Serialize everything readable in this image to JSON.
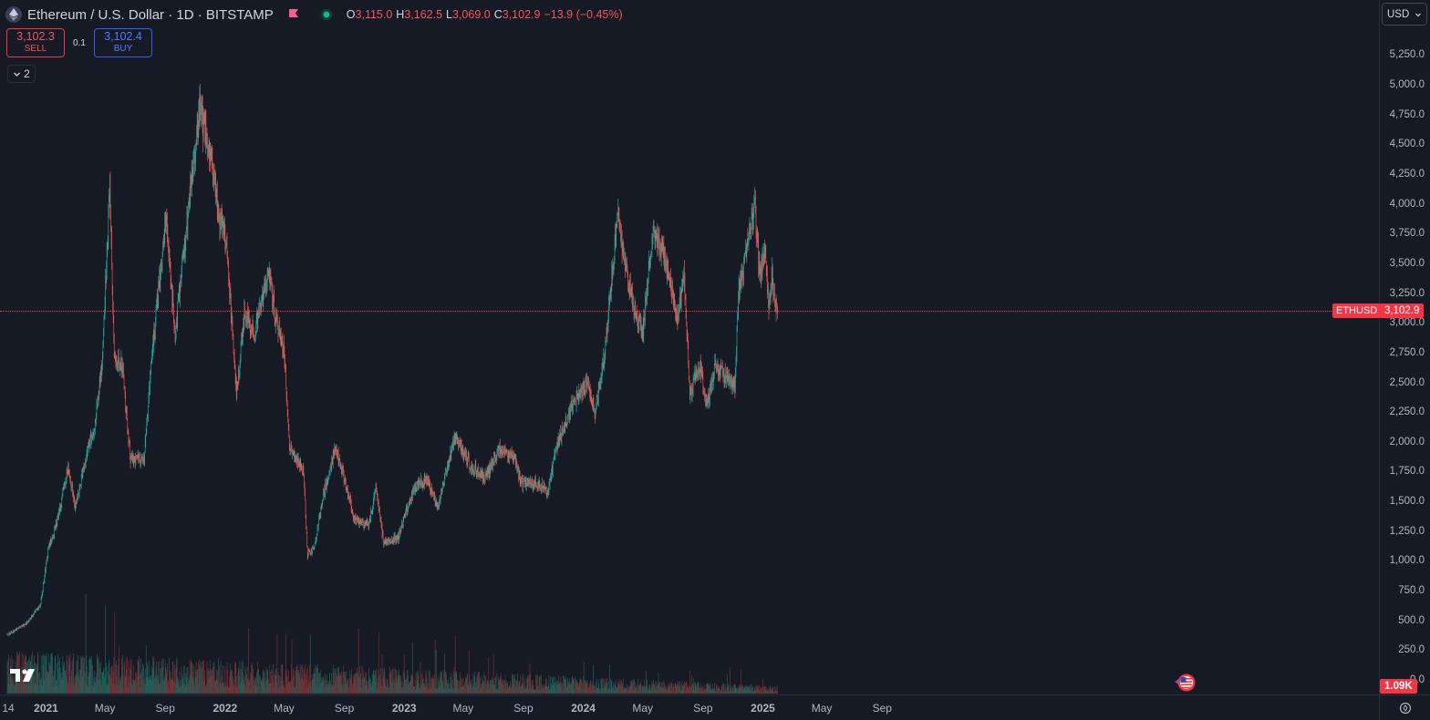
{
  "header": {
    "symbol_title": "Ethereum / U.S. Dollar · 1D · BITSTAMP",
    "ohlc": [
      {
        "key": "O",
        "value": "3,115.0"
      },
      {
        "key": "H",
        "value": "3,162.5"
      },
      {
        "key": "L",
        "value": "3,069.0"
      },
      {
        "key": "C",
        "value": "3,102.9"
      },
      {
        "key": "",
        "value": "−13.9 (−0.45%)"
      }
    ],
    "icons": [
      "ethereum-logo-icon",
      "flag-icon",
      "market-status-icon"
    ]
  },
  "trade": {
    "sell_price": "3,102.3",
    "sell_label": "SELL",
    "spread": "0.1",
    "buy_price": "3,102.4",
    "buy_label": "BUY"
  },
  "indicators_toggle": {
    "count": "2",
    "icon": "chevron-down-icon"
  },
  "price_scale": {
    "currency": "USD",
    "ticks": [
      "5,250.0",
      "5,000.0",
      "4,750.0",
      "4,500.0",
      "4,250.0",
      "4,000.0",
      "3,750.0",
      "3,500.0",
      "3,250.0",
      "3,000.0",
      "2,750.0",
      "2,500.0",
      "2,250.0",
      "2,000.0",
      "1,750.0",
      "1,500.0",
      "1,250.0",
      "1,000.0",
      "750.0",
      "500.0",
      "250.0",
      "0.0"
    ],
    "last_price_label": "3,102.9",
    "symbol_tag": "ETHUSD",
    "volume_label": "1.09K"
  },
  "time_scale": {
    "ticks": [
      "14",
      "2021",
      "May",
      "Sep",
      "2022",
      "May",
      "Sep",
      "2023",
      "May",
      "Sep",
      "2024",
      "May",
      "Sep",
      "2025",
      "May",
      "Sep"
    ]
  },
  "colors": {
    "background": "#161a25",
    "up": "#26a69a",
    "down": "#ef5350",
    "price_line": "#f23645",
    "buy": "#2962ff"
  },
  "chart_data": {
    "type": "candlestick",
    "symbol": "ETHUSD",
    "interval": "1D",
    "exchange": "BITSTAMP",
    "y_range": [
      0,
      5350
    ],
    "x_range": [
      "2020-10-14",
      "2025-10-31"
    ],
    "last_close": 3102.9,
    "anchors": [
      [
        "2020-10-14",
        380
      ],
      [
        "2020-11-20",
        470
      ],
      [
        "2020-12-20",
        620
      ],
      [
        "2021-01-05",
        1080
      ],
      [
        "2021-01-25",
        1350
      ],
      [
        "2021-02-15",
        1800
      ],
      [
        "2021-03-01",
        1450
      ],
      [
        "2021-03-20",
        1800
      ],
      [
        "2021-04-10",
        2150
      ],
      [
        "2021-04-25",
        2650
      ],
      [
        "2021-05-11",
        4150
      ],
      [
        "2021-05-20",
        2700
      ],
      [
        "2021-06-05",
        2650
      ],
      [
        "2021-06-22",
        1850
      ],
      [
        "2021-07-20",
        1850
      ],
      [
        "2021-08-05",
        2750
      ],
      [
        "2021-09-03",
        3900
      ],
      [
        "2021-09-21",
        2900
      ],
      [
        "2021-10-05",
        3450
      ],
      [
        "2021-10-29",
        4350
      ],
      [
        "2021-11-10",
        4800
      ],
      [
        "2021-12-01",
        4400
      ],
      [
        "2021-12-20",
        3900
      ],
      [
        "2022-01-05",
        3600
      ],
      [
        "2022-01-24",
        2400
      ],
      [
        "2022-02-10",
        3100
      ],
      [
        "2022-03-01",
        2900
      ],
      [
        "2022-03-30",
        3450
      ],
      [
        "2022-04-15",
        3000
      ],
      [
        "2022-05-01",
        2800
      ],
      [
        "2022-05-12",
        1950
      ],
      [
        "2022-06-10",
        1750
      ],
      [
        "2022-06-18",
        1050
      ],
      [
        "2022-07-01",
        1100
      ],
      [
        "2022-07-20",
        1550
      ],
      [
        "2022-08-14",
        1950
      ],
      [
        "2022-09-07",
        1600
      ],
      [
        "2022-09-20",
        1350
      ],
      [
        "2022-10-20",
        1300
      ],
      [
        "2022-11-05",
        1600
      ],
      [
        "2022-11-20",
        1150
      ],
      [
        "2022-12-20",
        1200
      ],
      [
        "2023-01-20",
        1600
      ],
      [
        "2023-02-15",
        1700
      ],
      [
        "2023-03-10",
        1450
      ],
      [
        "2023-04-15",
        2050
      ],
      [
        "2023-05-15",
        1800
      ],
      [
        "2023-06-15",
        1700
      ],
      [
        "2023-07-15",
        1950
      ],
      [
        "2023-08-15",
        1850
      ],
      [
        "2023-08-28",
        1650
      ],
      [
        "2023-10-01",
        1650
      ],
      [
        "2023-10-20",
        1580
      ],
      [
        "2023-11-10",
        2000
      ],
      [
        "2023-12-10",
        2300
      ],
      [
        "2024-01-10",
        2500
      ],
      [
        "2024-01-25",
        2250
      ],
      [
        "2024-02-15",
        2800
      ],
      [
        "2024-03-12",
        3950
      ],
      [
        "2024-03-25",
        3500
      ],
      [
        "2024-04-15",
        3100
      ],
      [
        "2024-05-01",
        2900
      ],
      [
        "2024-05-22",
        3800
      ],
      [
        "2024-06-10",
        3600
      ],
      [
        "2024-06-25",
        3350
      ],
      [
        "2024-07-10",
        3050
      ],
      [
        "2024-07-25",
        3400
      ],
      [
        "2024-08-05",
        2400
      ],
      [
        "2024-08-25",
        2650
      ],
      [
        "2024-09-08",
        2300
      ],
      [
        "2024-09-27",
        2650
      ],
      [
        "2024-10-15",
        2550
      ],
      [
        "2024-11-05",
        2450
      ],
      [
        "2024-11-12",
        3250
      ],
      [
        "2024-11-30",
        3650
      ],
      [
        "2024-12-16",
        4000
      ],
      [
        "2024-12-25",
        3400
      ],
      [
        "2025-01-06",
        3650
      ],
      [
        "2025-01-13",
        3100
      ],
      [
        "2025-01-20",
        3400
      ],
      [
        "2025-01-25",
        3200
      ],
      [
        "2025-01-31",
        3102.9
      ]
    ]
  }
}
